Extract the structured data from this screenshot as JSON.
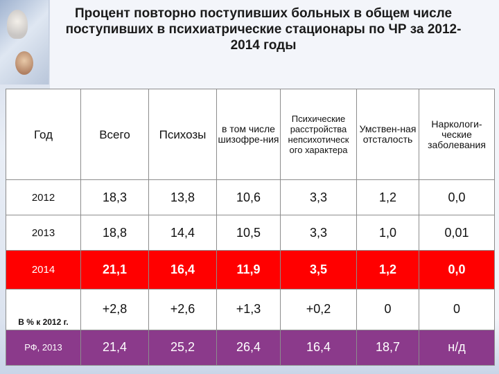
{
  "title": "Процент повторно поступивших больных в общем числе поступивших в психиатрические стационары по ЧР за 2012-2014 годы",
  "table": {
    "headers": [
      "Год",
      "Всего",
      "Психозы",
      "в том числе шизофре-ния",
      "Психические расстройства непсихотическ ого характера",
      "Умствен-ная отсталость",
      "Наркологи-ческие заболевания"
    ],
    "rows": [
      {
        "label": "2012",
        "values": [
          "18,3",
          "13,8",
          "10,6",
          "3,3",
          "1,2",
          "0,0"
        ]
      },
      {
        "label": "2013",
        "values": [
          "18,8",
          "14,4",
          "10,5",
          "3,3",
          "1,0",
          "0,01"
        ]
      },
      {
        "label": "2014",
        "values": [
          "21,1",
          "16,4",
          "11,9",
          "3,5",
          "1,2",
          "0,0"
        ]
      },
      {
        "label": "В % к 2012 г.",
        "values": [
          "+2,8",
          "+2,6",
          "+1,3",
          "+0,2",
          "0",
          "0"
        ]
      },
      {
        "label": "РФ, 2013",
        "values": [
          "21,4",
          "25,2",
          "26,4",
          "16,4",
          "18,7",
          "н/д"
        ]
      }
    ]
  },
  "colors": {
    "highlight_row": "#ff0000",
    "rf_row": "#8b3a8b"
  }
}
